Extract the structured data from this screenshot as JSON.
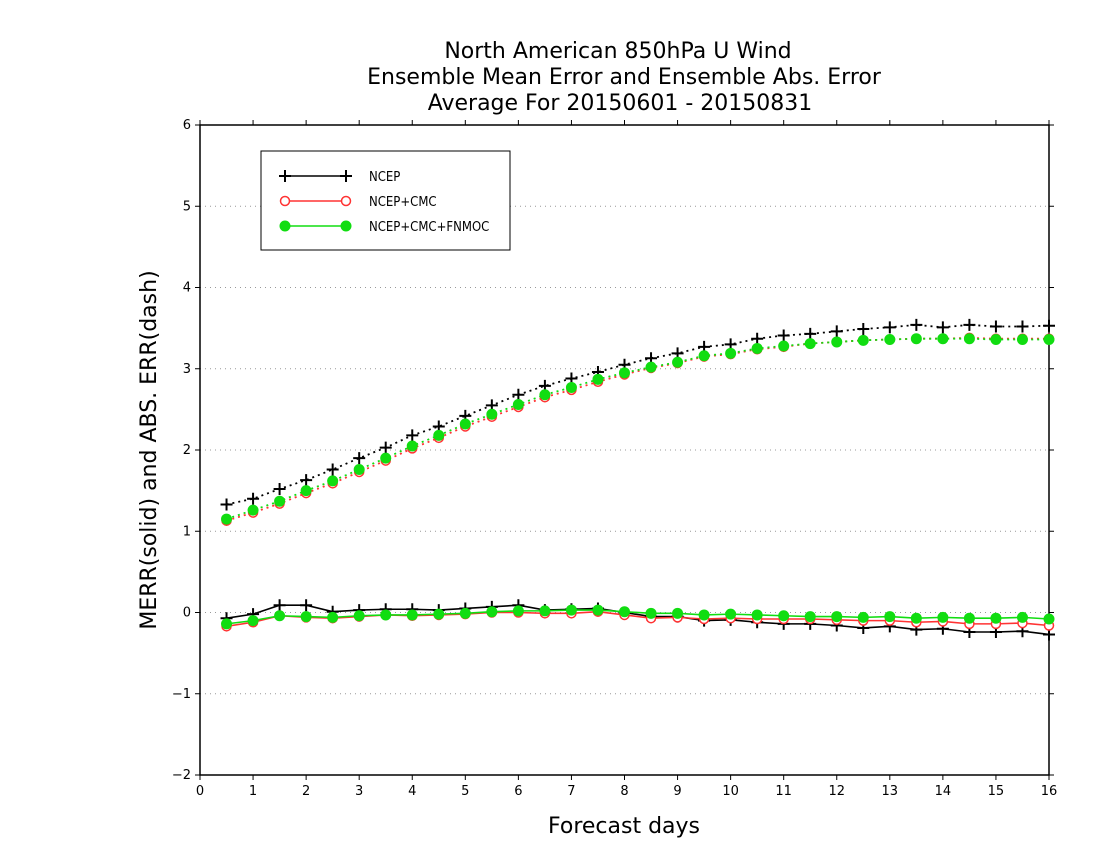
{
  "chart_data": {
    "type": "line",
    "title_lines": [
      "North American 850hPa U Wind",
      "Ensemble Mean Error and Ensemble Abs. Error",
      "Average For 20150601 - 20150831"
    ],
    "xlabel": "Forecast days",
    "ylabel": "MERR(solid) and ABS. ERR(dash)",
    "xlim": [
      0,
      16
    ],
    "ylim": [
      -2,
      6
    ],
    "xticks": [
      0,
      1,
      2,
      3,
      4,
      5,
      6,
      7,
      8,
      9,
      10,
      11,
      12,
      13,
      14,
      15,
      16
    ],
    "yticks": [
      -2,
      -1,
      0,
      1,
      2,
      3,
      4,
      5,
      6
    ],
    "grid": "horizontal dotted",
    "legend_position": "top-left",
    "x": [
      0.5,
      1,
      1.5,
      2,
      2.5,
      3,
      3.5,
      4,
      4.5,
      5,
      5.5,
      6,
      6.5,
      7,
      7.5,
      8,
      8.5,
      9,
      9.5,
      10,
      10.5,
      11,
      11.5,
      12,
      12.5,
      13,
      13.5,
      14,
      14.5,
      15,
      15.5,
      16
    ],
    "series": [
      {
        "name": "NCEP",
        "color": "#000000",
        "marker": "plus",
        "merr": [
          -0.07,
          -0.02,
          0.09,
          0.09,
          0.01,
          0.03,
          0.04,
          0.04,
          0.03,
          0.05,
          0.07,
          0.09,
          0.03,
          0.04,
          0.05,
          0.0,
          -0.05,
          -0.05,
          -0.1,
          -0.09,
          -0.12,
          -0.14,
          -0.14,
          -0.16,
          -0.19,
          -0.17,
          -0.21,
          -0.2,
          -0.24,
          -0.24,
          -0.23,
          -0.27
        ],
        "abs_err": [
          1.33,
          1.4,
          1.52,
          1.63,
          1.76,
          1.9,
          2.03,
          2.18,
          2.29,
          2.42,
          2.55,
          2.68,
          2.79,
          2.88,
          2.96,
          3.05,
          3.13,
          3.19,
          3.27,
          3.3,
          3.37,
          3.41,
          3.43,
          3.46,
          3.49,
          3.51,
          3.54,
          3.51,
          3.54,
          3.52,
          3.52,
          3.53
        ]
      },
      {
        "name": "NCEP+CMC",
        "color": "#ff3333",
        "marker": "open-circle",
        "merr": [
          -0.17,
          -0.12,
          -0.04,
          -0.06,
          -0.07,
          -0.05,
          -0.03,
          -0.04,
          -0.03,
          -0.02,
          0.0,
          0.0,
          -0.01,
          -0.01,
          0.01,
          -0.03,
          -0.07,
          -0.06,
          -0.08,
          -0.07,
          -0.08,
          -0.08,
          -0.08,
          -0.09,
          -0.1,
          -0.1,
          -0.12,
          -0.11,
          -0.14,
          -0.14,
          -0.13,
          -0.16
        ],
        "abs_err": [
          1.13,
          1.23,
          1.34,
          1.47,
          1.59,
          1.73,
          1.87,
          2.02,
          2.15,
          2.29,
          2.41,
          2.53,
          2.65,
          2.74,
          2.84,
          2.93,
          3.01,
          3.07,
          3.15,
          3.18,
          3.24,
          3.27,
          3.31,
          3.33,
          3.35,
          3.36,
          3.37,
          3.37,
          3.38,
          3.37,
          3.37,
          3.37
        ]
      },
      {
        "name": "NCEP+CMC+FNMOC",
        "color": "#11dd11",
        "marker": "filled-circle",
        "merr": [
          -0.14,
          -0.1,
          -0.04,
          -0.05,
          -0.06,
          -0.04,
          -0.03,
          -0.03,
          -0.02,
          -0.01,
          0.01,
          0.02,
          0.02,
          0.03,
          0.03,
          0.01,
          -0.01,
          -0.01,
          -0.03,
          -0.02,
          -0.03,
          -0.04,
          -0.05,
          -0.05,
          -0.06,
          -0.05,
          -0.07,
          -0.06,
          -0.07,
          -0.07,
          -0.06,
          -0.08
        ],
        "abs_err": [
          1.15,
          1.26,
          1.37,
          1.5,
          1.62,
          1.76,
          1.9,
          2.05,
          2.18,
          2.32,
          2.44,
          2.56,
          2.68,
          2.77,
          2.87,
          2.95,
          3.02,
          3.08,
          3.16,
          3.19,
          3.25,
          3.28,
          3.31,
          3.33,
          3.35,
          3.36,
          3.37,
          3.37,
          3.37,
          3.36,
          3.36,
          3.36
        ]
      }
    ]
  }
}
